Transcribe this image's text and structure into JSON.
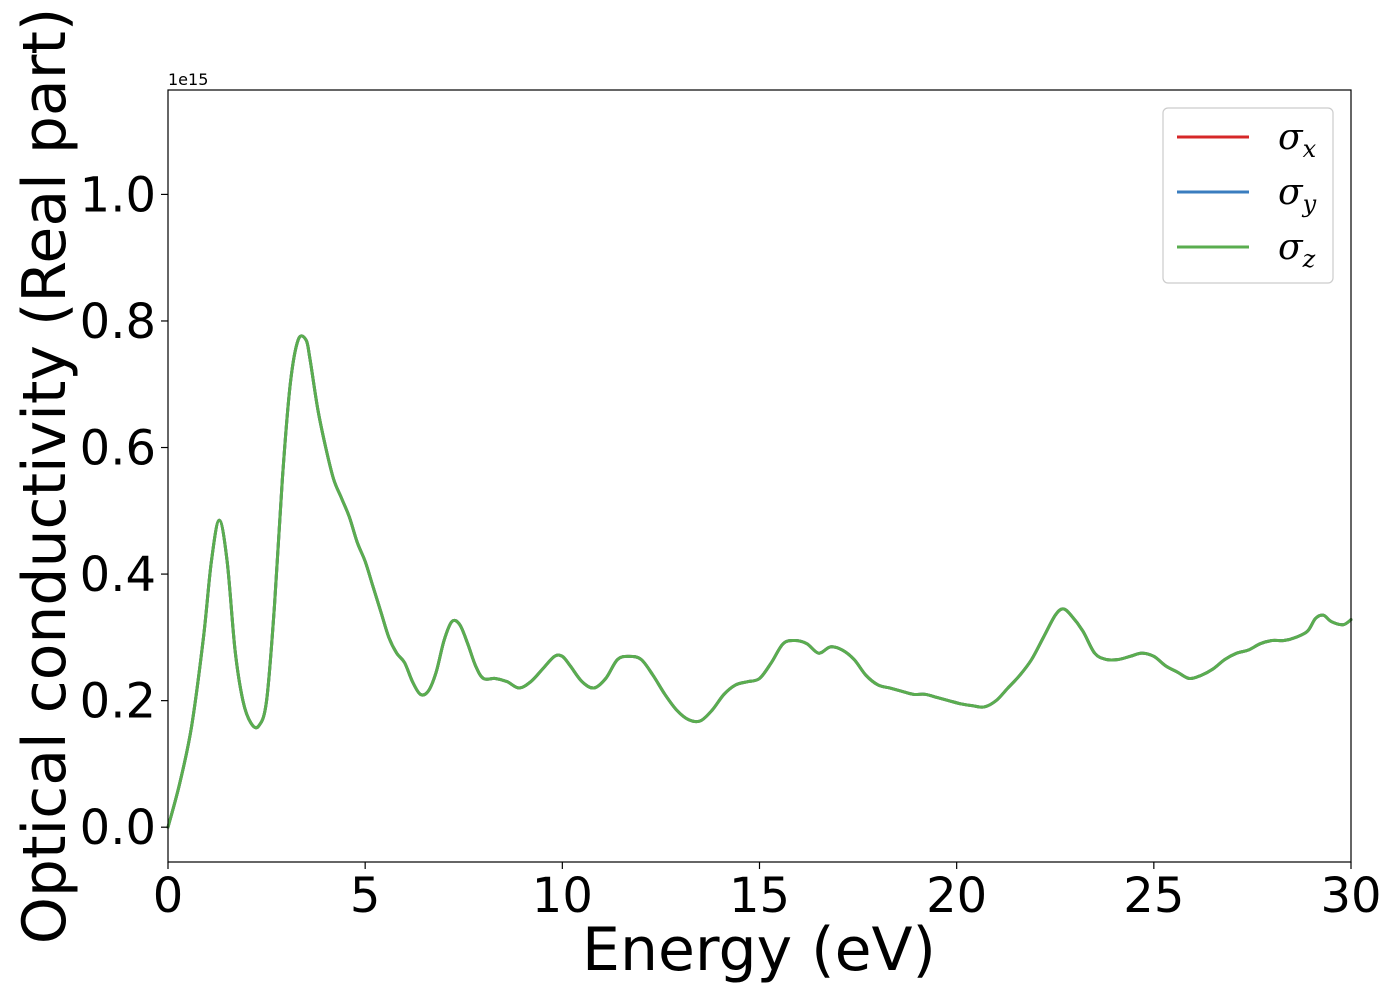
{
  "chart_data": {
    "type": "line",
    "xlabel": "Energy (eV)",
    "ylabel": "Optical conductivity (Real part)",
    "y_offset_text": "1e15",
    "y_scale": 1000000000000000.0,
    "xlim": [
      0,
      30
    ],
    "ylim": [
      -0.055,
      1.165
    ],
    "x_ticks": [
      0,
      5,
      10,
      15,
      20,
      25,
      30
    ],
    "x_tick_labels": [
      "0",
      "5",
      "10",
      "15",
      "20",
      "25",
      "30"
    ],
    "y_ticks": [
      0.0,
      0.2,
      0.4,
      0.6,
      0.8,
      1.0
    ],
    "y_tick_labels": [
      "0.0",
      "0.2",
      "0.4",
      "0.6",
      "0.8",
      "1.0"
    ],
    "grid": false,
    "legend_position": "top-right",
    "series": [
      {
        "name": "σ",
        "subscript": "x",
        "color": "#d62728"
      },
      {
        "name": "σ",
        "subscript": "y",
        "color": "#3a7dbf"
      },
      {
        "name": "σ",
        "subscript": "z",
        "color": "#5aad4f"
      }
    ],
    "x": [
      0,
      0.3,
      0.6,
      0.9,
      1.1,
      1.3,
      1.5,
      1.7,
      1.9,
      2.1,
      2.3,
      2.5,
      2.7,
      2.9,
      3.1,
      3.3,
      3.5,
      3.6,
      3.8,
      4.0,
      4.2,
      4.4,
      4.6,
      4.8,
      5.0,
      5.2,
      5.4,
      5.6,
      5.8,
      6.0,
      6.2,
      6.4,
      6.6,
      6.8,
      7.0,
      7.2,
      7.4,
      7.6,
      7.8,
      8.0,
      8.3,
      8.6,
      8.9,
      9.2,
      9.5,
      9.8,
      10.0,
      10.2,
      10.5,
      10.8,
      11.1,
      11.4,
      11.7,
      12.0,
      12.3,
      12.6,
      12.9,
      13.2,
      13.5,
      13.8,
      14.1,
      14.4,
      14.7,
      15.0,
      15.3,
      15.6,
      15.9,
      16.2,
      16.5,
      16.8,
      17.1,
      17.4,
      17.7,
      18.0,
      18.3,
      18.6,
      18.9,
      19.2,
      19.5,
      19.8,
      20.1,
      20.4,
      20.7,
      21.0,
      21.3,
      21.6,
      21.9,
      22.2,
      22.5,
      22.7,
      22.9,
      23.2,
      23.5,
      23.8,
      24.1,
      24.4,
      24.7,
      25.0,
      25.3,
      25.6,
      25.9,
      26.2,
      26.5,
      26.8,
      27.1,
      27.4,
      27.7,
      28.0,
      28.3,
      28.6,
      28.9,
      29.1,
      29.3,
      29.5,
      29.8,
      30.0
    ],
    "y": [
      0.0,
      0.07,
      0.16,
      0.3,
      0.42,
      0.485,
      0.42,
      0.28,
      0.2,
      0.165,
      0.16,
      0.2,
      0.35,
      0.55,
      0.7,
      0.77,
      0.77,
      0.74,
      0.66,
      0.6,
      0.55,
      0.52,
      0.49,
      0.45,
      0.42,
      0.38,
      0.34,
      0.3,
      0.275,
      0.26,
      0.23,
      0.21,
      0.215,
      0.245,
      0.295,
      0.325,
      0.32,
      0.29,
      0.255,
      0.235,
      0.235,
      0.23,
      0.22,
      0.23,
      0.25,
      0.27,
      0.27,
      0.255,
      0.23,
      0.22,
      0.235,
      0.265,
      0.27,
      0.265,
      0.24,
      0.21,
      0.185,
      0.17,
      0.168,
      0.185,
      0.21,
      0.225,
      0.23,
      0.235,
      0.26,
      0.29,
      0.295,
      0.29,
      0.275,
      0.285,
      0.28,
      0.265,
      0.24,
      0.225,
      0.22,
      0.215,
      0.21,
      0.21,
      0.205,
      0.2,
      0.195,
      0.192,
      0.19,
      0.2,
      0.22,
      0.24,
      0.265,
      0.3,
      0.335,
      0.345,
      0.335,
      0.31,
      0.275,
      0.265,
      0.265,
      0.27,
      0.275,
      0.27,
      0.255,
      0.245,
      0.235,
      0.24,
      0.25,
      0.265,
      0.275,
      0.28,
      0.29,
      0.295,
      0.295,
      0.3,
      0.31,
      0.33,
      0.335,
      0.325,
      0.32,
      0.328
    ]
  }
}
